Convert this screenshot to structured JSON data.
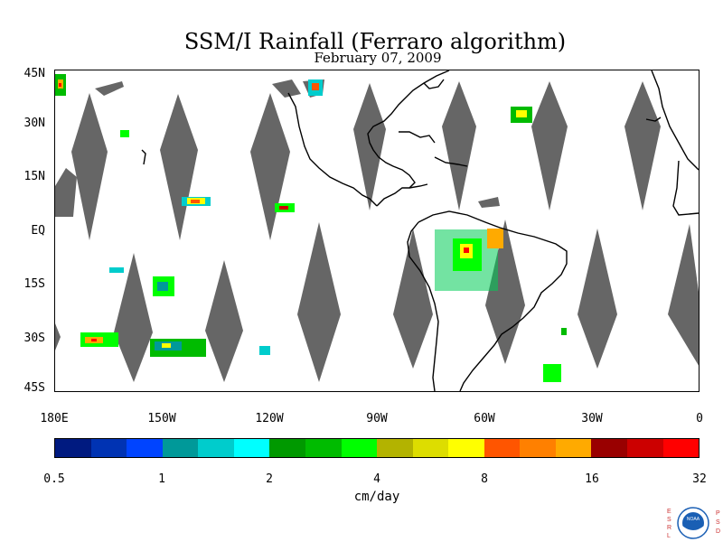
{
  "title": "SSM/I Rainfall (Ferraro algorithm)",
  "subtitle": "February 07, 2009",
  "map": {
    "lon_range": [
      "180E",
      "0"
    ],
    "lat_range": [
      "45S",
      "45N"
    ],
    "latitude_labels": [
      "45N",
      "30N",
      "15N",
      "EQ",
      "15S",
      "30S",
      "45S"
    ],
    "longitude_labels": [
      "180E",
      "150W",
      "120W",
      "90W",
      "60W",
      "30W",
      "0"
    ],
    "swath_gap_color": "#666666",
    "coastline_color": "#000000",
    "rain_regions": [
      "North Pacific near 40N 175E",
      "Central Pacific ITCZ near 10N 140W",
      "Eastern Pacific near 8N 115W",
      "South Pacific near 15S-20S 150W",
      "South Pacific near 30S 170W-140W",
      "Amazon Basin 0-20S",
      "South Atlantic near 20S 40W",
      "North Atlantic near 30N 50W"
    ]
  },
  "colorbar": {
    "units": "cm/day",
    "tick_labels": [
      "0.5",
      "1",
      "2",
      "4",
      "8",
      "16",
      "32"
    ],
    "colors": [
      "#001a80",
      "#0033b3",
      "#0044ff",
      "#009999",
      "#00cccc",
      "#00ffff",
      "#009900",
      "#00bb00",
      "#00ff00",
      "#b3b300",
      "#dddd00",
      "#ffff00",
      "#ff5500",
      "#ff8000",
      "#ffaa00",
      "#990000",
      "#cc0000",
      "#ff0000"
    ]
  },
  "logo": {
    "left_letters": "ESRL",
    "right_letters": "PSD",
    "center_text": "NOAA"
  }
}
